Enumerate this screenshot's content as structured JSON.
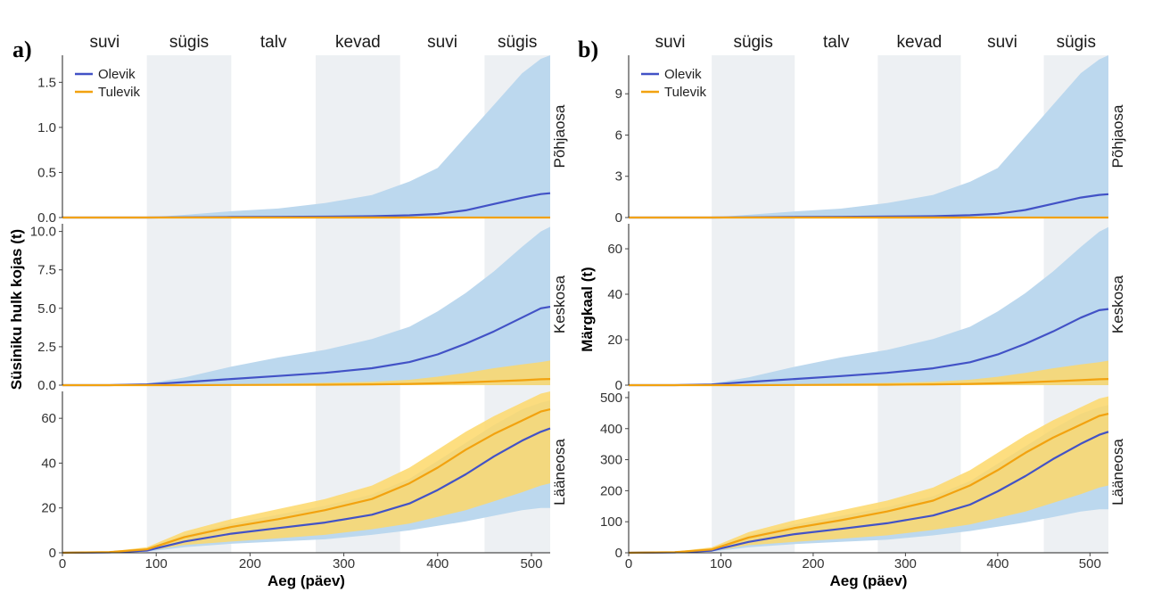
{
  "colors": {
    "olevik_line": "#4252c6",
    "olevik_band": "#bcd8ee",
    "tulevik_line": "#f2a20f",
    "tulevik_band": "#fdd86a",
    "season_shade": "#edf0f3"
  },
  "chart_data": [
    {
      "type": "line",
      "panel_label": "a)",
      "xlabel": "Aeg (päev)",
      "ylabel": "Süsiniku hulk kojas (t)",
      "xlim": [
        0,
        520
      ],
      "x_ticks": [
        0,
        100,
        200,
        300,
        400,
        500
      ],
      "seasons": [
        {
          "name": "suvi",
          "start": 0,
          "end": 90,
          "shaded": false
        },
        {
          "name": "sügis",
          "start": 90,
          "end": 180,
          "shaded": true
        },
        {
          "name": "talv",
          "start": 180,
          "end": 270,
          "shaded": false
        },
        {
          "name": "kevad",
          "start": 270,
          "end": 360,
          "shaded": true
        },
        {
          "name": "suvi",
          "start": 360,
          "end": 450,
          "shaded": false
        },
        {
          "name": "sügis",
          "start": 450,
          "end": 520,
          "shaded": true
        }
      ],
      "legend": {
        "position": "top-left",
        "entries": [
          "Olevik",
          "Tulevik"
        ]
      },
      "facets": [
        {
          "label": "Põhjaosa",
          "ylim": [
            0,
            1.8
          ],
          "y_ticks": [
            0,
            0.5,
            1.0,
            1.5
          ],
          "y_tick_labels": [
            "0.0",
            "0.5",
            "1.0",
            "1.5"
          ],
          "x": [
            0,
            50,
            90,
            130,
            180,
            230,
            280,
            330,
            370,
            400,
            430,
            460,
            490,
            510,
            520
          ],
          "series": [
            {
              "name": "Olevik",
              "mean": [
                0,
                0,
                0,
                0.003,
                0.006,
                0.008,
                0.01,
                0.015,
                0.025,
                0.04,
                0.08,
                0.15,
                0.22,
                0.26,
                0.27
              ],
              "lower": [
                0,
                0,
                0,
                0,
                0,
                0,
                0,
                0,
                0,
                0,
                0,
                0,
                0,
                0,
                0
              ],
              "upper": [
                0,
                0,
                0,
                0.03,
                0.07,
                0.1,
                0.16,
                0.25,
                0.4,
                0.55,
                0.9,
                1.25,
                1.6,
                1.76,
                1.8
              ]
            },
            {
              "name": "Tulevik",
              "mean": [
                0,
                0,
                0,
                0,
                0,
                0,
                0,
                0,
                0,
                0,
                0,
                0,
                0,
                0,
                0
              ],
              "lower": [
                0,
                0,
                0,
                0,
                0,
                0,
                0,
                0,
                0,
                0,
                0,
                0,
                0,
                0,
                0
              ],
              "upper": [
                0,
                0,
                0,
                0,
                0,
                0,
                0,
                0,
                0,
                0,
                0,
                0,
                0,
                0,
                0
              ]
            }
          ]
        },
        {
          "label": "Keskosa",
          "ylim": [
            0,
            10.5
          ],
          "y_ticks": [
            0,
            2.5,
            5.0,
            7.5,
            10.0
          ],
          "y_tick_labels": [
            "0.0",
            "2.5",
            "5.0",
            "7.5",
            "10.0"
          ],
          "x": [
            0,
            50,
            90,
            130,
            180,
            230,
            280,
            330,
            370,
            400,
            430,
            460,
            490,
            510,
            520
          ],
          "series": [
            {
              "name": "Olevik",
              "mean": [
                0,
                0,
                0.05,
                0.2,
                0.4,
                0.6,
                0.8,
                1.1,
                1.5,
                2.0,
                2.7,
                3.5,
                4.4,
                5.0,
                5.1
              ],
              "lower": [
                0,
                0,
                0,
                0,
                0,
                0,
                0,
                0,
                0,
                0,
                0,
                0,
                0,
                0,
                0
              ],
              "upper": [
                0,
                0,
                0.1,
                0.5,
                1.2,
                1.8,
                2.3,
                3.0,
                3.8,
                4.8,
                6.0,
                7.4,
                9.0,
                10.0,
                10.3
              ]
            },
            {
              "name": "Tulevik",
              "mean": [
                0,
                0,
                0,
                0,
                0.01,
                0.02,
                0.03,
                0.05,
                0.08,
                0.12,
                0.18,
                0.25,
                0.32,
                0.38,
                0.4
              ],
              "lower": [
                0,
                0,
                0,
                0,
                0,
                0,
                0,
                0,
                0,
                0,
                0,
                0,
                0,
                0,
                0
              ],
              "upper": [
                0,
                0,
                0,
                0.02,
                0.05,
                0.1,
                0.15,
                0.22,
                0.35,
                0.55,
                0.8,
                1.1,
                1.35,
                1.5,
                1.6
              ]
            }
          ]
        },
        {
          "label": "Lääneosa",
          "ylim": [
            0,
            72
          ],
          "y_ticks": [
            0,
            20,
            40,
            60
          ],
          "y_tick_labels": [
            "0",
            "20",
            "40",
            "60"
          ],
          "x": [
            0,
            50,
            90,
            130,
            180,
            230,
            280,
            330,
            370,
            400,
            430,
            460,
            490,
            510,
            520
          ],
          "series": [
            {
              "name": "Olevik",
              "mean": [
                0,
                0.2,
                1.0,
                5.0,
                8.5,
                11,
                13.5,
                17,
                22,
                28,
                35,
                43,
                50,
                54,
                55.5
              ],
              "lower": [
                0,
                0,
                0.5,
                2.5,
                4.0,
                5.0,
                6.0,
                8.0,
                10.0,
                12.0,
                14.0,
                16.5,
                19.0,
                20.0,
                20.0
              ],
              "upper": [
                0,
                0.4,
                2.0,
                8.0,
                13.0,
                17,
                21,
                26,
                33,
                41,
                49,
                57,
                64,
                67,
                68
              ]
            },
            {
              "name": "Tulevik",
              "mean": [
                0,
                0.3,
                1.5,
                7.0,
                11.5,
                15,
                19,
                24,
                31,
                38,
                46,
                53,
                59,
                63,
                64
              ],
              "lower": [
                0,
                0,
                0.8,
                3.5,
                5.0,
                6.5,
                8.0,
                10.5,
                13.0,
                16.0,
                19.0,
                23.0,
                27.0,
                30.0,
                31.0
              ],
              "upper": [
                0,
                0.5,
                2.5,
                9.5,
                15.0,
                19.5,
                24.0,
                30.0,
                38.0,
                46.0,
                54.0,
                61.0,
                67.0,
                71.0,
                72.0
              ]
            }
          ]
        }
      ]
    },
    {
      "type": "line",
      "panel_label": "b)",
      "xlabel": "Aeg (päev)",
      "ylabel": "Märgkaal (t)",
      "xlim": [
        0,
        520
      ],
      "x_ticks": [
        0,
        100,
        200,
        300,
        400,
        500
      ],
      "seasons": [
        {
          "name": "suvi",
          "start": 0,
          "end": 90,
          "shaded": false
        },
        {
          "name": "sügis",
          "start": 90,
          "end": 180,
          "shaded": true
        },
        {
          "name": "talv",
          "start": 180,
          "end": 270,
          "shaded": false
        },
        {
          "name": "kevad",
          "start": 270,
          "end": 360,
          "shaded": true
        },
        {
          "name": "suvi",
          "start": 360,
          "end": 450,
          "shaded": false
        },
        {
          "name": "sügis",
          "start": 450,
          "end": 520,
          "shaded": true
        }
      ],
      "legend": {
        "position": "top-left",
        "entries": [
          "Olevik",
          "Tulevik"
        ]
      },
      "facets": [
        {
          "label": "Põhjaosa",
          "ylim": [
            0,
            11.8
          ],
          "y_ticks": [
            0,
            3,
            6,
            9
          ],
          "y_tick_labels": [
            "0",
            "3",
            "6",
            "9"
          ],
          "x": [
            0,
            50,
            90,
            130,
            180,
            230,
            280,
            330,
            370,
            400,
            430,
            460,
            490,
            510,
            520
          ],
          "series": [
            {
              "name": "Olevik",
              "mean": [
                0,
                0,
                0,
                0.02,
                0.04,
                0.05,
                0.07,
                0.1,
                0.17,
                0.27,
                0.55,
                1.0,
                1.45,
                1.65,
                1.7
              ],
              "lower": [
                0,
                0,
                0,
                0,
                0,
                0,
                0,
                0,
                0,
                0,
                0,
                0,
                0,
                0,
                0
              ],
              "upper": [
                0,
                0,
                0,
                0.2,
                0.45,
                0.65,
                1.05,
                1.65,
                2.6,
                3.6,
                5.9,
                8.2,
                10.5,
                11.5,
                11.8
              ]
            },
            {
              "name": "Tulevik",
              "mean": [
                0,
                0,
                0,
                0,
                0,
                0,
                0,
                0,
                0,
                0,
                0,
                0,
                0,
                0,
                0
              ],
              "lower": [
                0,
                0,
                0,
                0,
                0,
                0,
                0,
                0,
                0,
                0,
                0,
                0,
                0,
                0,
                0
              ],
              "upper": [
                0,
                0,
                0,
                0,
                0,
                0,
                0,
                0,
                0,
                0,
                0,
                0,
                0,
                0,
                0
              ]
            }
          ]
        },
        {
          "label": "Keskosa",
          "ylim": [
            0,
            71
          ],
          "y_ticks": [
            0,
            20,
            40,
            60
          ],
          "y_tick_labels": [
            "0",
            "20",
            "40",
            "60"
          ],
          "x": [
            0,
            50,
            90,
            130,
            180,
            230,
            280,
            330,
            370,
            400,
            430,
            460,
            490,
            510,
            520
          ],
          "series": [
            {
              "name": "Olevik",
              "mean": [
                0,
                0,
                0.3,
                1.4,
                2.7,
                4.0,
                5.4,
                7.4,
                10.1,
                13.5,
                18.2,
                23.6,
                29.7,
                33.0,
                33.5
              ],
              "lower": [
                0,
                0,
                0,
                0,
                0,
                0,
                0,
                0,
                0,
                0,
                0,
                0,
                0,
                0,
                0
              ],
              "upper": [
                0,
                0,
                0.7,
                3.4,
                8.1,
                12.2,
                15.5,
                20.3,
                25.7,
                32.4,
                40.5,
                50.0,
                60.8,
                67.5,
                69.5
              ]
            },
            {
              "name": "Tulevik",
              "mean": [
                0,
                0,
                0,
                0,
                0.07,
                0.14,
                0.2,
                0.34,
                0.54,
                0.81,
                1.2,
                1.7,
                2.2,
                2.6,
                2.7
              ],
              "lower": [
                0,
                0,
                0,
                0,
                0,
                0,
                0,
                0,
                0,
                0,
                0,
                0,
                0,
                0,
                0
              ],
              "upper": [
                0,
                0,
                0,
                0.14,
                0.34,
                0.68,
                1.0,
                1.5,
                2.4,
                3.7,
                5.4,
                7.4,
                9.1,
                10.1,
                10.8
              ]
            }
          ]
        },
        {
          "label": "Lääneosa",
          "ylim": [
            0,
            520
          ],
          "y_ticks": [
            0,
            100,
            200,
            300,
            400,
            500
          ],
          "y_tick_labels": [
            "0",
            "100",
            "200",
            "300",
            "400",
            "500"
          ],
          "x": [
            0,
            50,
            90,
            130,
            180,
            230,
            280,
            330,
            370,
            400,
            430,
            460,
            490,
            510,
            520
          ],
          "series": [
            {
              "name": "Olevik",
              "mean": [
                0,
                1.4,
                7,
                35,
                60,
                77,
                95,
                120,
                155,
                198,
                247,
                302,
                351,
                380,
                390
              ],
              "lower": [
                0,
                0,
                3.5,
                17.5,
                28,
                35,
                42,
                56,
                70,
                84,
                98,
                115,
                133,
                140,
                140
              ],
              "upper": [
                0,
                2.8,
                14,
                56,
                91,
                119,
                147,
                182,
                231,
                287,
                343,
                399,
                448,
                469,
                476
              ]
            },
            {
              "name": "Tulevik",
              "mean": [
                0,
                2.1,
                10.5,
                49,
                80,
                105,
                133,
                168,
                217,
                266,
                322,
                371,
                413,
                441,
                448
              ],
              "lower": [
                0,
                0,
                5.6,
                24.5,
                35,
                45.5,
                56,
                73.5,
                91,
                112,
                133,
                161,
                189,
                210,
                217
              ],
              "upper": [
                0,
                3.5,
                17.5,
                66.5,
                105,
                136.5,
                168,
                210,
                266,
                322,
                378,
                427,
                469,
                497,
                504
              ]
            }
          ]
        }
      ]
    }
  ]
}
